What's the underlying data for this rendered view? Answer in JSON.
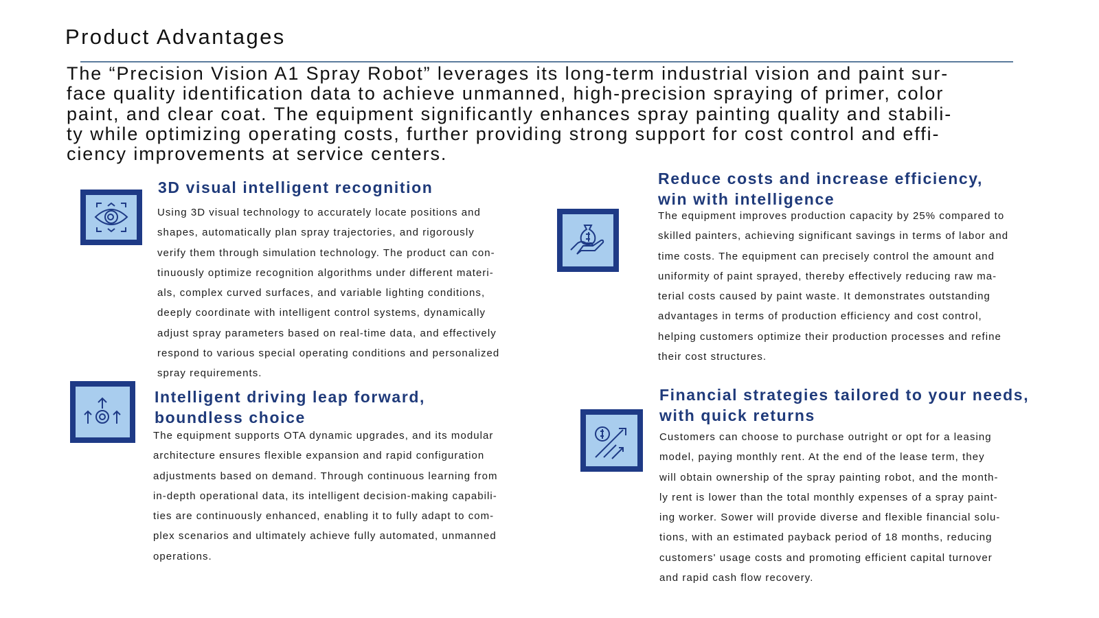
{
  "title": "Product Advantages",
  "intro_lines": [
    "The “Precision Vision A1 Spray Robot” leverages its long-term industrial vision and paint sur-",
    "face quality identification data to achieve unmanned, high-precision spraying of primer, color",
    "paint, and clear coat. The equipment significantly enhances spray painting quality and stabili-",
    "ty while optimizing operating costs, further providing strong support for cost control and effi-",
    "ciency improvements at service centers."
  ],
  "colors": {
    "heading": "#1f3a7a",
    "icon_dark": "#1e3a86",
    "icon_light": "#a9cdee",
    "rule": "#5a7a9c"
  },
  "cards": [
    {
      "icon": "eye-scan-icon",
      "heading_lines": [
        "3D visual intelligent recognition"
      ],
      "body_lines": [
        "Using 3D visual technology to accurately locate positions and",
        "shapes, automatically plan spray trajectories, and rigorously",
        "verify them through simulation technology. The product can con-",
        "tinuously optimize recognition algorithms under different materi-",
        "als, complex curved surfaces, and variable lighting conditions,",
        "deeply coordinate with intelligent control systems, dynamically",
        "adjust spray parameters based on real-time data, and effectively",
        "respond to various special operating conditions and personalized",
        "spray requirements."
      ]
    },
    {
      "icon": "money-bag-hand-icon",
      "heading_lines": [
        "Reduce costs and increase efficiency,",
        "win with intelligence"
      ],
      "body_lines": [
        "The equipment improves production capacity by 25% compared to",
        "skilled painters, achieving significant savings in terms of labor and",
        "time costs. The equipment can precisely control the amount and",
        "uniformity of paint sprayed, thereby effectively reducing raw ma-",
        "terial costs caused by paint waste. It demonstrates outstanding",
        "advantages in terms of production efficiency and cost control,",
        "helping customers optimize their production processes and refine",
        "their cost structures."
      ]
    },
    {
      "icon": "gear-arrows-icon",
      "heading_lines": [
        "Intelligent driving leap forward,",
        "boundless choice"
      ],
      "body_lines": [
        "The equipment supports OTA dynamic upgrades, and its modular",
        "architecture ensures flexible expansion and rapid configuration",
        "adjustments based on demand. Through continuous learning from",
        "in-depth operational data, its intelligent decision-making capabili-",
        "ties are continuously enhanced, enabling it to fully adapt to com-",
        "plex scenarios and ultimately achieve fully automated, unmanned",
        "operations."
      ]
    },
    {
      "icon": "dollar-growth-arrow-icon",
      "heading_lines": [
        "Financial strategies tailored to your needs,",
        "with quick returns"
      ],
      "body_lines": [
        "Customers can choose to purchase outright or opt for a leasing",
        "model, paying monthly rent. At the end of the lease term, they",
        "will obtain ownership of the spray painting robot, and the month-",
        "ly rent is lower than the total monthly expenses of a spray paint-",
        "ing worker. Sower will provide diverse and flexible financial solu-",
        "tions, with an estimated payback period of 18 months, reducing",
        "customers' usage costs and promoting efficient capital turnover",
        "and rapid cash flow recovery."
      ]
    }
  ]
}
